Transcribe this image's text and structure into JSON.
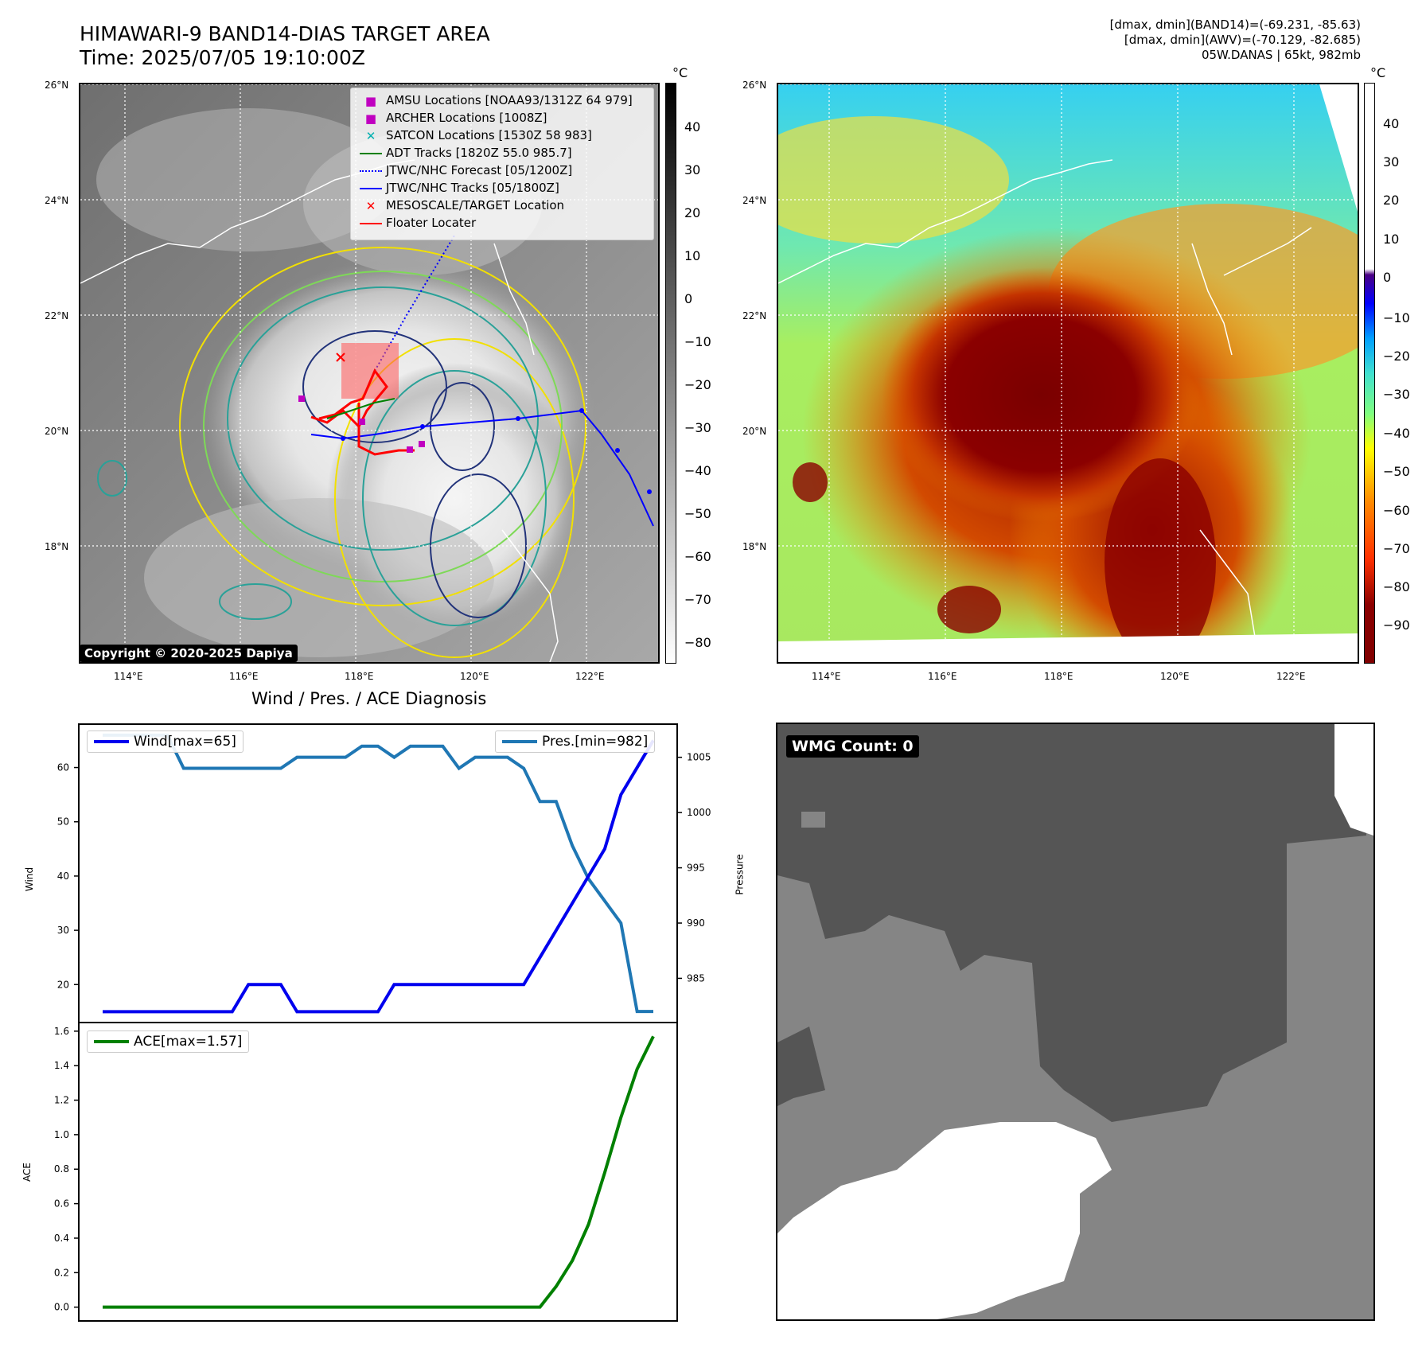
{
  "header": {
    "title_line1": "HIMAWARI-9 BAND14-DIAS TARGET AREA",
    "title_line2": "Time: 2025/07/05 19:10:00Z",
    "info_line1": "[dmax, dmin](BAND14)=(-69.231, -85.63)",
    "info_line2": "[dmax, dmin](AWV)=(-70.129, -82.685)",
    "info_line3": "05W.DANAS | 65kt, 982mb"
  },
  "map_panel_left": {
    "lat_ticks": [
      "26°N",
      "24°N",
      "22°N",
      "20°N",
      "18°N"
    ],
    "lon_ticks": [
      "114°E",
      "116°E",
      "118°E",
      "120°E",
      "122°E"
    ],
    "colorbar_unit": "°C",
    "colorbar_ticks": [
      "40",
      "30",
      "20",
      "10",
      "0",
      "−10",
      "−20",
      "−30",
      "−40",
      "−50",
      "−60",
      "−70",
      "−80"
    ],
    "copyright": "Copyright © 2020-2025 Dapiya",
    "legend": [
      {
        "label": "AMSU Locations [NOAA93/1312Z 64 979]",
        "color": "#c000c0",
        "symbol": "square"
      },
      {
        "label": "ARCHER Locations [1008Z]",
        "color": "#c000c0",
        "symbol": "square"
      },
      {
        "label": "SATCON Locations [1530Z 58 983]",
        "color": "#00b0b0",
        "symbol": "x"
      },
      {
        "label": "ADT Tracks [1820Z 55.0 985.7]",
        "color": "#008000",
        "symbol": "line"
      },
      {
        "label": "JTWC/NHC Forecast [05/1200Z]",
        "color": "#0000ff",
        "symbol": "dotted"
      },
      {
        "label": "JTWC/NHC Tracks [05/1800Z]",
        "color": "#0000ff",
        "symbol": "line-dot"
      },
      {
        "label": "MESOSCALE/TARGET Location",
        "color": "#ff0000",
        "symbol": "x"
      },
      {
        "label": "Floater Locater",
        "color": "#ff0000",
        "symbol": "line"
      }
    ]
  },
  "map_panel_right": {
    "lat_ticks": [
      "26°N",
      "24°N",
      "22°N",
      "20°N",
      "18°N"
    ],
    "lon_ticks": [
      "114°E",
      "116°E",
      "118°E",
      "120°E",
      "122°E"
    ],
    "colorbar_unit": "°C",
    "colorbar_ticks": [
      "40",
      "30",
      "20",
      "10",
      "0",
      "−10",
      "−20",
      "−30",
      "−40",
      "−50",
      "−60",
      "−70",
      "−80",
      "−90"
    ]
  },
  "wmg": {
    "label": "WMG Count: 0"
  },
  "chart_data": [
    {
      "type": "line",
      "title": "Wind / Pres. / ACE Diagnosis",
      "ylabel": "Wind",
      "ylabel_right": "Pressure",
      "x": [
        0,
        1,
        2,
        3,
        4,
        5,
        6,
        7,
        8,
        9,
        10,
        11,
        12,
        13,
        14,
        15,
        16,
        17,
        18,
        19,
        20,
        21,
        22,
        23,
        24,
        25,
        26,
        27,
        28,
        29,
        30,
        31,
        32,
        33,
        34
      ],
      "ylim": [
        13,
        68
      ],
      "ylim_right": [
        981,
        1008
      ],
      "yticks": [
        20,
        30,
        40,
        50,
        60
      ],
      "yticks_right": [
        985,
        990,
        995,
        1000,
        1005
      ],
      "series": [
        {
          "name": "Wind[max=65]",
          "axis": "left",
          "color": "#0000ee",
          "values": [
            15,
            15,
            15,
            15,
            15,
            15,
            15,
            15,
            15,
            20,
            20,
            20,
            15,
            15,
            15,
            15,
            15,
            15,
            20,
            20,
            20,
            20,
            20,
            20,
            20,
            20,
            20,
            25,
            30,
            35,
            40,
            45,
            55,
            60,
            65
          ]
        },
        {
          "name": "Pres.[min=982]",
          "axis": "right",
          "color": "#1f77b4",
          "values": [
            1007,
            1007,
            1007,
            1007,
            1007,
            1004,
            1004,
            1004,
            1004,
            1004,
            1004,
            1004,
            1005,
            1005,
            1005,
            1005,
            1006,
            1006,
            1005,
            1006,
            1006,
            1006,
            1004,
            1005,
            1005,
            1005,
            1004,
            1001,
            1001,
            997,
            994,
            992,
            990,
            982,
            982
          ]
        }
      ]
    },
    {
      "type": "line",
      "ylabel": "ACE",
      "x": [
        0,
        1,
        2,
        3,
        4,
        5,
        6,
        7,
        8,
        9,
        10,
        11,
        12,
        13,
        14,
        15,
        16,
        17,
        18,
        19,
        20,
        21,
        22,
        23,
        24,
        25,
        26,
        27,
        28,
        29,
        30,
        31,
        32,
        33,
        34
      ],
      "ylim": [
        -0.08,
        1.65
      ],
      "yticks": [
        0.0,
        0.2,
        0.4,
        0.6,
        0.8,
        1.0,
        1.2,
        1.4,
        1.6
      ],
      "ytick_labels": [
        "0.0",
        "0.2",
        "0.4",
        "0.6",
        "0.8",
        "1.0",
        "1.2",
        "1.4",
        "1.6"
      ],
      "series": [
        {
          "name": "ACE[max=1.57]",
          "color": "#008000",
          "values": [
            0,
            0,
            0,
            0,
            0,
            0,
            0,
            0,
            0,
            0,
            0,
            0,
            0,
            0,
            0,
            0,
            0,
            0,
            0,
            0,
            0,
            0,
            0,
            0,
            0,
            0,
            0,
            0,
            0.12,
            0.27,
            0.48,
            0.78,
            1.1,
            1.38,
            1.57
          ]
        }
      ]
    }
  ]
}
